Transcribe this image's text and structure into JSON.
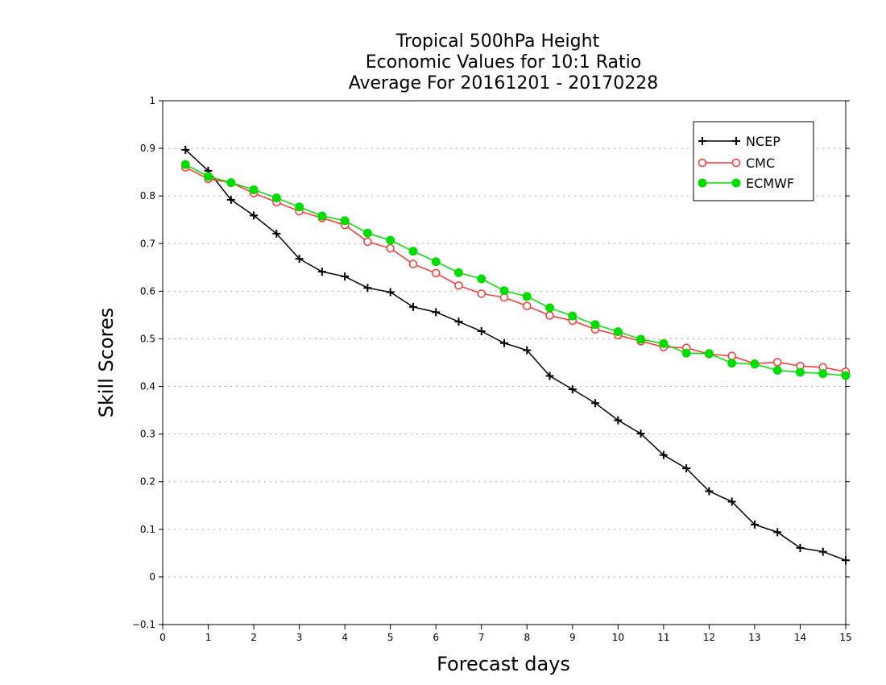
{
  "chart_data": {
    "type": "line",
    "title": [
      "Tropical 500hPa Height",
      "Economic Values for 10:1 Ratio",
      "Average For 20161201 - 20170228"
    ],
    "xlabel": "Forecast days",
    "ylabel": "Skill Scores",
    "xlim": [
      0,
      15
    ],
    "ylim": [
      -0.1,
      1
    ],
    "xticks": [
      0,
      1,
      2,
      3,
      4,
      5,
      6,
      7,
      8,
      9,
      10,
      11,
      12,
      13,
      14,
      15
    ],
    "yticks": [
      -0.1,
      0,
      0.1,
      0.2,
      0.3,
      0.4,
      0.5,
      0.6,
      0.7,
      0.8,
      0.9,
      1
    ],
    "grid": "horizontal-dotted",
    "legend": "top-right",
    "x": [
      0.5,
      1,
      1.5,
      2,
      2.5,
      3,
      3.5,
      4,
      4.5,
      5,
      5.5,
      6,
      6.5,
      7,
      7.5,
      8,
      8.5,
      9,
      9.5,
      10,
      10.5,
      11,
      11.5,
      12,
      12.5,
      13,
      13.5,
      14,
      14.5,
      15
    ],
    "series": [
      {
        "name": "NCEP",
        "color": "#000000",
        "marker": "plus",
        "values": [
          0.897,
          0.853,
          0.792,
          0.759,
          0.721,
          0.668,
          0.641,
          0.631,
          0.607,
          0.598,
          0.567,
          0.556,
          0.536,
          0.516,
          0.491,
          0.476,
          0.422,
          0.394,
          0.365,
          0.329,
          0.301,
          0.256,
          0.228,
          0.18,
          0.158,
          0.11,
          0.094,
          0.061,
          0.053,
          0.035
        ]
      },
      {
        "name": "CMC",
        "color": "#ff3333",
        "marker": "open-circle",
        "values": [
          0.86,
          0.836,
          0.828,
          0.806,
          0.787,
          0.768,
          0.754,
          0.739,
          0.704,
          0.69,
          0.657,
          0.638,
          0.612,
          0.595,
          0.587,
          0.569,
          0.549,
          0.538,
          0.52,
          0.508,
          0.495,
          0.483,
          0.481,
          0.468,
          0.464,
          0.448,
          0.451,
          0.443,
          0.44,
          0.431
        ]
      },
      {
        "name": "ECMWF",
        "color": "#00dd00",
        "marker": "filled-circle",
        "values": [
          0.866,
          0.841,
          0.828,
          0.813,
          0.796,
          0.777,
          0.758,
          0.748,
          0.722,
          0.707,
          0.684,
          0.662,
          0.639,
          0.626,
          0.601,
          0.589,
          0.565,
          0.548,
          0.53,
          0.515,
          0.499,
          0.49,
          0.47,
          0.469,
          0.449,
          0.447,
          0.434,
          0.43,
          0.427,
          0.423
        ]
      }
    ]
  }
}
